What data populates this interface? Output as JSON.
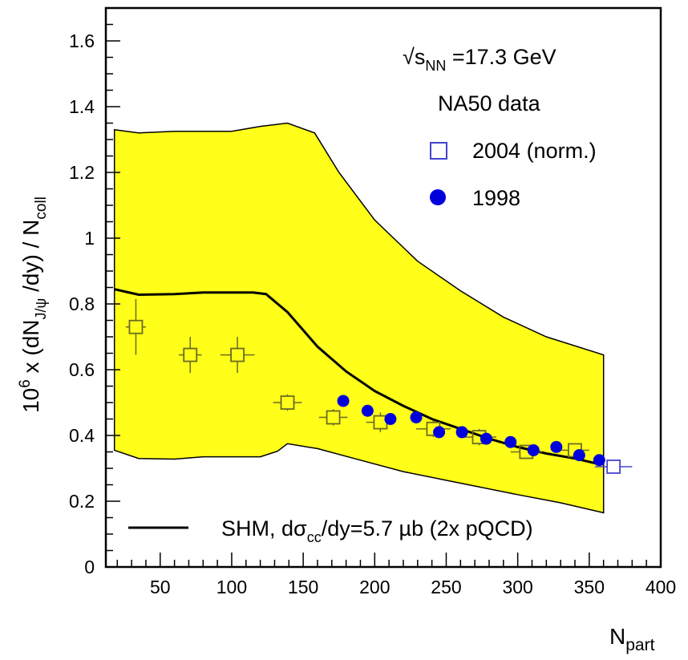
{
  "chart_data": {
    "type": "scatter",
    "xlabel": "N",
    "xlabel_sub": "part",
    "ylabel": {
      "base": "10",
      "exp": "6",
      "mid": " x (dN",
      "sub": "J/ψ",
      "end": " /dy) / N",
      "sub2": "coll"
    },
    "xlim": [
      12,
      400
    ],
    "ylim": [
      0,
      1.7
    ],
    "x_ticks": [
      50,
      100,
      150,
      200,
      250,
      300,
      350,
      400
    ],
    "y_ticks": [
      0,
      0.2,
      0.4,
      0.6,
      0.8,
      1,
      1.2,
      1.4,
      1.6
    ],
    "y_tick_labels": [
      "0",
      "0.2",
      "0.4",
      "0.6",
      "0.8",
      "1",
      "1.2",
      "1.4",
      "1.6"
    ],
    "annotations": {
      "energy_root": "√",
      "energy_s": "s",
      "energy_sub": "NN",
      "energy_val": " =17.3 GeV",
      "group_title": "NA50 data"
    },
    "band": {
      "color": "#ffff1a",
      "upper": [
        [
          18,
          1.33
        ],
        [
          35,
          1.32
        ],
        [
          60,
          1.325
        ],
        [
          100,
          1.325
        ],
        [
          120,
          1.34
        ],
        [
          139,
          1.35
        ],
        [
          158,
          1.32
        ],
        [
          175,
          1.2
        ],
        [
          200,
          1.055
        ],
        [
          230,
          0.93
        ],
        [
          260,
          0.84
        ],
        [
          290,
          0.76
        ],
        [
          320,
          0.7
        ],
        [
          360,
          0.645
        ]
      ],
      "lower": [
        [
          18,
          0.355
        ],
        [
          35,
          0.33
        ],
        [
          60,
          0.328
        ],
        [
          80,
          0.335
        ],
        [
          120,
          0.335
        ],
        [
          132,
          0.352
        ],
        [
          139,
          0.375
        ],
        [
          160,
          0.36
        ],
        [
          190,
          0.325
        ],
        [
          220,
          0.29
        ],
        [
          260,
          0.255
        ],
        [
          300,
          0.22
        ],
        [
          330,
          0.195
        ],
        [
          360,
          0.165
        ]
      ]
    },
    "shm_line": {
      "name": "SHM, dσ",
      "name_sub": "cc",
      "name_end": "/dy=5.7 µb (2x pQCD)",
      "points": [
        [
          18,
          0.845
        ],
        [
          35,
          0.828
        ],
        [
          60,
          0.83
        ],
        [
          80,
          0.835
        ],
        [
          100,
          0.835
        ],
        [
          115,
          0.835
        ],
        [
          124,
          0.83
        ],
        [
          139,
          0.775
        ],
        [
          160,
          0.67
        ],
        [
          180,
          0.595
        ],
        [
          200,
          0.535
        ],
        [
          220,
          0.49
        ],
        [
          240,
          0.45
        ],
        [
          260,
          0.42
        ],
        [
          280,
          0.39
        ],
        [
          300,
          0.365
        ],
        [
          320,
          0.345
        ],
        [
          340,
          0.33
        ],
        [
          355,
          0.315
        ]
      ]
    },
    "series": [
      {
        "name": "2004 (norm.)",
        "marker": "open-square",
        "color": "#6b6b20",
        "legend_color": "#4444cc",
        "points": [
          {
            "x": 33,
            "y": 0.73,
            "xerr": 7,
            "yerr": 0.085
          },
          {
            "x": 71,
            "y": 0.645,
            "xerr": 8,
            "yerr": 0.055
          },
          {
            "x": 104,
            "y": 0.645,
            "xerr": 12,
            "yerr": 0.055
          },
          {
            "x": 139,
            "y": 0.5,
            "xerr": 10,
            "yerr": 0.025
          },
          {
            "x": 171,
            "y": 0.455,
            "xerr": 10,
            "yerr": 0.025
          },
          {
            "x": 204,
            "y": 0.44,
            "xerr": 10,
            "yerr": 0.03
          },
          {
            "x": 241,
            "y": 0.42,
            "xerr": 12,
            "yerr": 0.025
          },
          {
            "x": 273,
            "y": 0.395,
            "xerr": 12,
            "yerr": 0.025
          },
          {
            "x": 306,
            "y": 0.35,
            "xerr": 11,
            "yerr": 0.02
          },
          {
            "x": 340,
            "y": 0.355,
            "xerr": 10,
            "yerr": 0.02
          }
        ],
        "extra": {
          "x": 367,
          "y": 0.305,
          "xerr": 13,
          "color": "#4444cc"
        }
      },
      {
        "name": "1998",
        "marker": "filled-circle",
        "color": "#0000dd",
        "points": [
          {
            "x": 178,
            "y": 0.505
          },
          {
            "x": 195,
            "y": 0.475
          },
          {
            "x": 211,
            "y": 0.45
          },
          {
            "x": 229,
            "y": 0.455
          },
          {
            "x": 245,
            "y": 0.41
          },
          {
            "x": 261,
            "y": 0.41
          },
          {
            "x": 278,
            "y": 0.39
          },
          {
            "x": 295,
            "y": 0.38
          },
          {
            "x": 311,
            "y": 0.355
          },
          {
            "x": 327,
            "y": 0.365
          },
          {
            "x": 343,
            "y": 0.34
          },
          {
            "x": 357,
            "y": 0.325
          }
        ]
      }
    ]
  }
}
